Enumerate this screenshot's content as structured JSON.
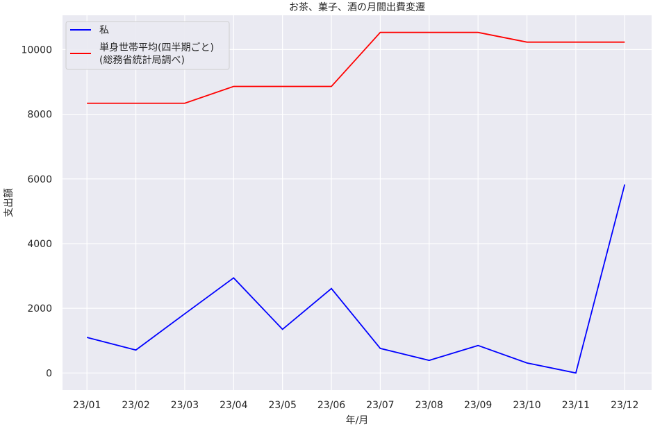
{
  "chart_data": {
    "type": "line",
    "title": "お茶、菓子、酒の月間出費変遷",
    "xlabel": "年/月",
    "ylabel": "支出額",
    "categories": [
      "23/01",
      "23/02",
      "23/03",
      "23/04",
      "23/05",
      "23/06",
      "23/07",
      "23/08",
      "23/09",
      "23/10",
      "23/11",
      "23/12"
    ],
    "yticks": [
      0,
      2000,
      4000,
      6000,
      8000,
      10000
    ],
    "ylim": [
      -530,
      11060
    ],
    "grid": true,
    "legend_placement": "top-left",
    "series": [
      {
        "name": "私",
        "color": "#0000ff",
        "values": [
          1100,
          710,
          1830,
          2940,
          1350,
          2610,
          760,
          390,
          850,
          310,
          0,
          5830
        ]
      },
      {
        "name": "単身世帯平均(四半期ごと)\n(総務省統計局調べ)",
        "legend_lines": [
          "単身世帯平均(四半期ごと)",
          "(総務省統計局調べ)"
        ],
        "color": "#ff0000",
        "values": [
          8340,
          8340,
          8340,
          8860,
          8860,
          8860,
          10530,
          10530,
          10530,
          10230,
          10230,
          10230
        ]
      }
    ],
    "colors": {
      "axes_bg": "#eaeaf2",
      "grid": "#ffffff"
    }
  }
}
